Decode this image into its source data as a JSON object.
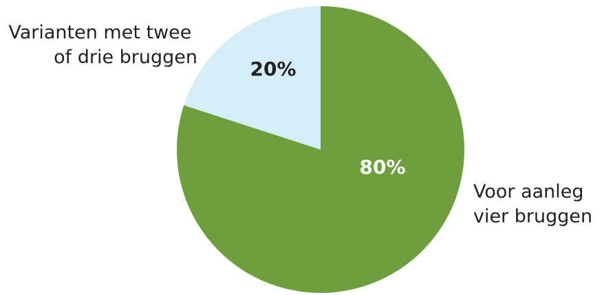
{
  "chart_data": {
    "type": "pie",
    "title": "",
    "slices": [
      {
        "label_lines": [
          "Voor aanleg",
          "vier bruggen"
        ],
        "value": 80,
        "value_label": "80%",
        "color": "#6e9f3f",
        "label_color": "#ffffff"
      },
      {
        "label_lines": [
          "Varianten met twee",
          "of drie bruggen"
        ],
        "value": 20,
        "value_label": "20%",
        "color": "#d4edf7",
        "label_color": "#222222"
      }
    ],
    "start_angle_deg": 0,
    "direction": "clockwise"
  }
}
